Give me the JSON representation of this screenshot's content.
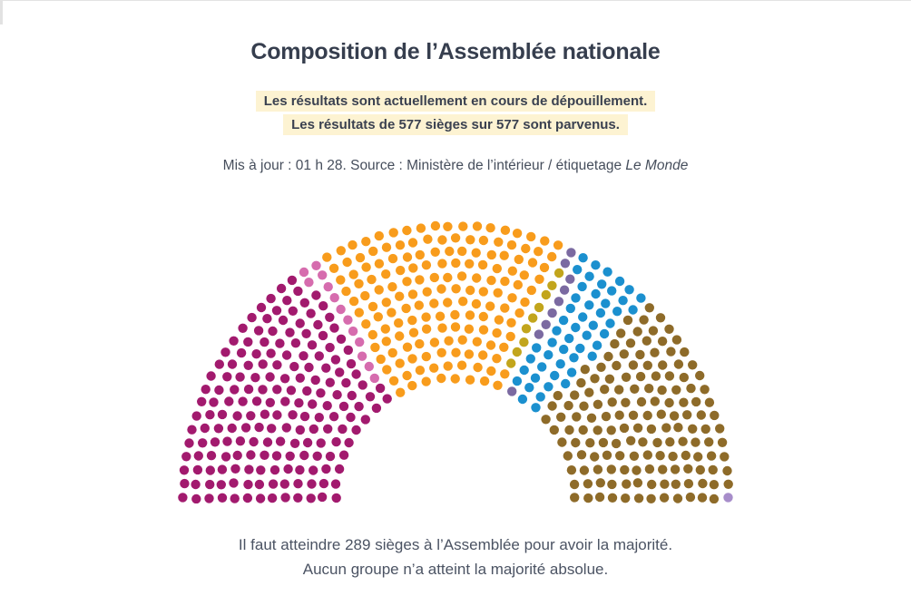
{
  "header": {
    "title": "Composition de l’Assemblée nationale"
  },
  "status": {
    "line1": "Les résultats sont actuellement en cours de dépouillement.",
    "line2": "Les résultats de 577 sièges sur 577 sont parvenus."
  },
  "meta": {
    "prefix": "Mis à jour : 01 h 28. Source : Ministère de l’intérieur / étiquetage ",
    "source_name": "Le Monde"
  },
  "footer": {
    "line1": "Il faut atteindre 289 sièges à l’Assemblée pour avoir la majorité.",
    "line2": "Aucun groupe n’a atteint la majorité absolue."
  },
  "chart_data": {
    "type": "parliament-hemicycle",
    "total_seats": 577,
    "seats_reported": 577,
    "majority_threshold": 289,
    "legend_visible": false,
    "groups": [
      {
        "id": "group-magenta",
        "seats": 182,
        "color": "#a21a6e"
      },
      {
        "id": "group-pink",
        "seats": 13,
        "color": "#d66cae"
      },
      {
        "id": "group-orange",
        "seats": 163,
        "color": "#f89c1c"
      },
      {
        "id": "group-gold",
        "seats": 9,
        "color": "#c2a51c"
      },
      {
        "id": "group-slate-purple",
        "seats": 9,
        "color": "#7b6aa1"
      },
      {
        "id": "group-blue",
        "seats": 51,
        "color": "#1b90cf"
      },
      {
        "id": "group-brown",
        "seats": 149,
        "color": "#8e6b29"
      },
      {
        "id": "group-lavender",
        "seats": 1,
        "color": "#a78dca"
      }
    ]
  }
}
